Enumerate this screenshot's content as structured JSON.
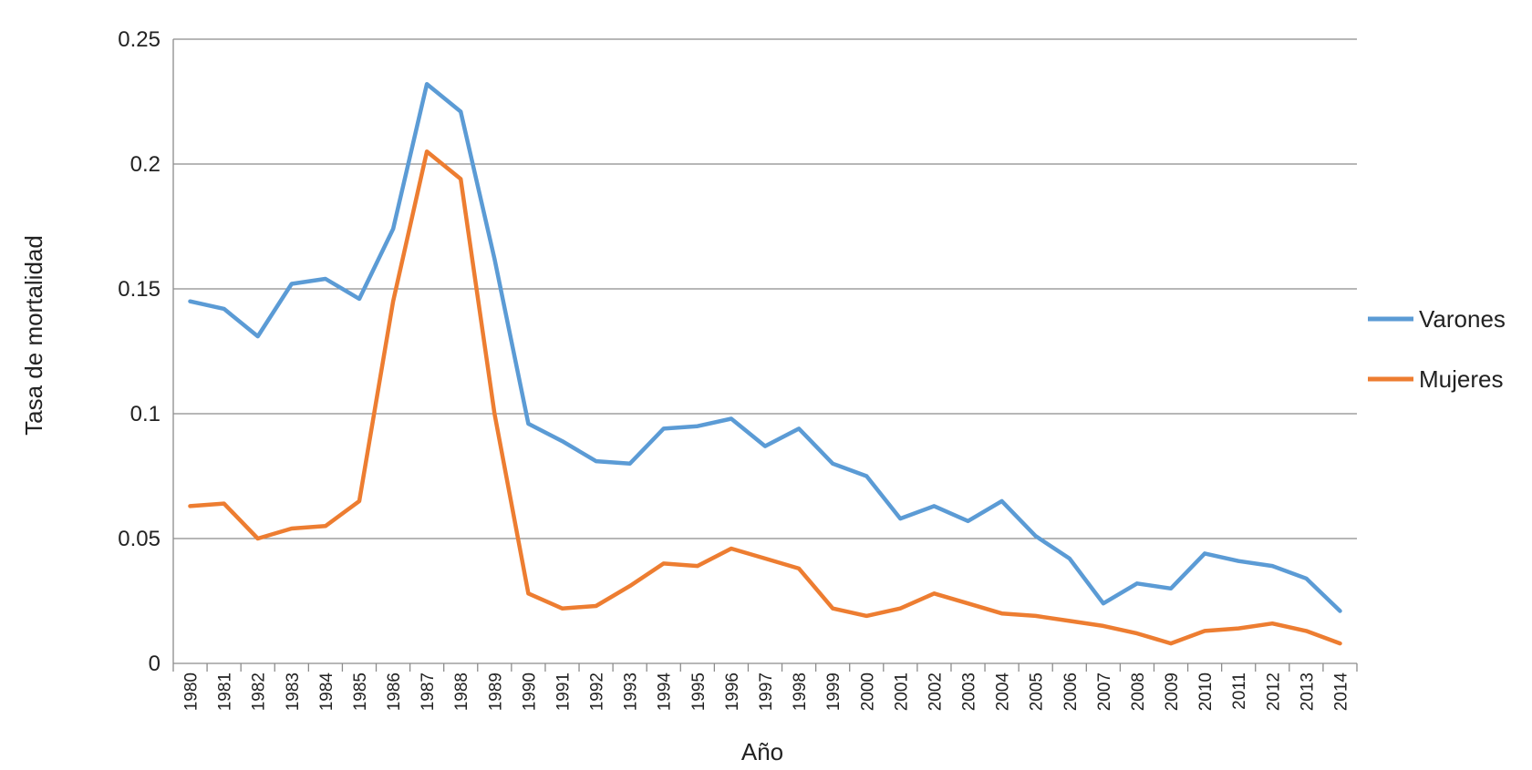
{
  "chart_data": {
    "type": "line",
    "xlabel": "Año",
    "ylabel": "Tasa de mortalidad",
    "ylim": [
      0,
      0.25
    ],
    "yticks": [
      "0",
      "0.05",
      "0.1",
      "0.15",
      "0.2",
      "0.25"
    ],
    "ytick_values": [
      0,
      0.05,
      0.1,
      0.15,
      0.2,
      0.25
    ],
    "grid": true,
    "legend_position": "right",
    "categories": [
      "1980",
      "1981",
      "1982",
      "1983",
      "1984",
      "1985",
      "1986",
      "1987",
      "1988",
      "1989",
      "1990",
      "1991",
      "1992",
      "1993",
      "1994",
      "1995",
      "1996",
      "1997",
      "1998",
      "1999",
      "2000",
      "2001",
      "2002",
      "2003",
      "2004",
      "2005",
      "2006",
      "2007",
      "2008",
      "2009",
      "2010",
      "2011",
      "2012",
      "2013",
      "2014"
    ],
    "series": [
      {
        "name": "Varones",
        "color": "#5B9BD5",
        "values": [
          0.145,
          0.142,
          0.131,
          0.152,
          0.154,
          0.146,
          0.174,
          0.232,
          0.221,
          0.162,
          0.096,
          0.089,
          0.081,
          0.08,
          0.094,
          0.095,
          0.098,
          0.087,
          0.094,
          0.08,
          0.075,
          0.058,
          0.063,
          0.057,
          0.065,
          0.051,
          0.042,
          0.024,
          0.032,
          0.03,
          0.044,
          0.041,
          0.039,
          0.034,
          0.021
        ]
      },
      {
        "name": "Mujeres",
        "color": "#ED7D31",
        "values": [
          0.063,
          0.064,
          0.05,
          0.054,
          0.055,
          0.065,
          0.145,
          0.205,
          0.194,
          0.1,
          0.028,
          0.022,
          0.023,
          0.031,
          0.04,
          0.039,
          0.046,
          0.042,
          0.038,
          0.022,
          0.019,
          0.022,
          0.028,
          0.024,
          0.02,
          0.019,
          0.017,
          0.015,
          0.012,
          0.008,
          0.013,
          0.014,
          0.016,
          0.013,
          0.008
        ]
      }
    ]
  }
}
